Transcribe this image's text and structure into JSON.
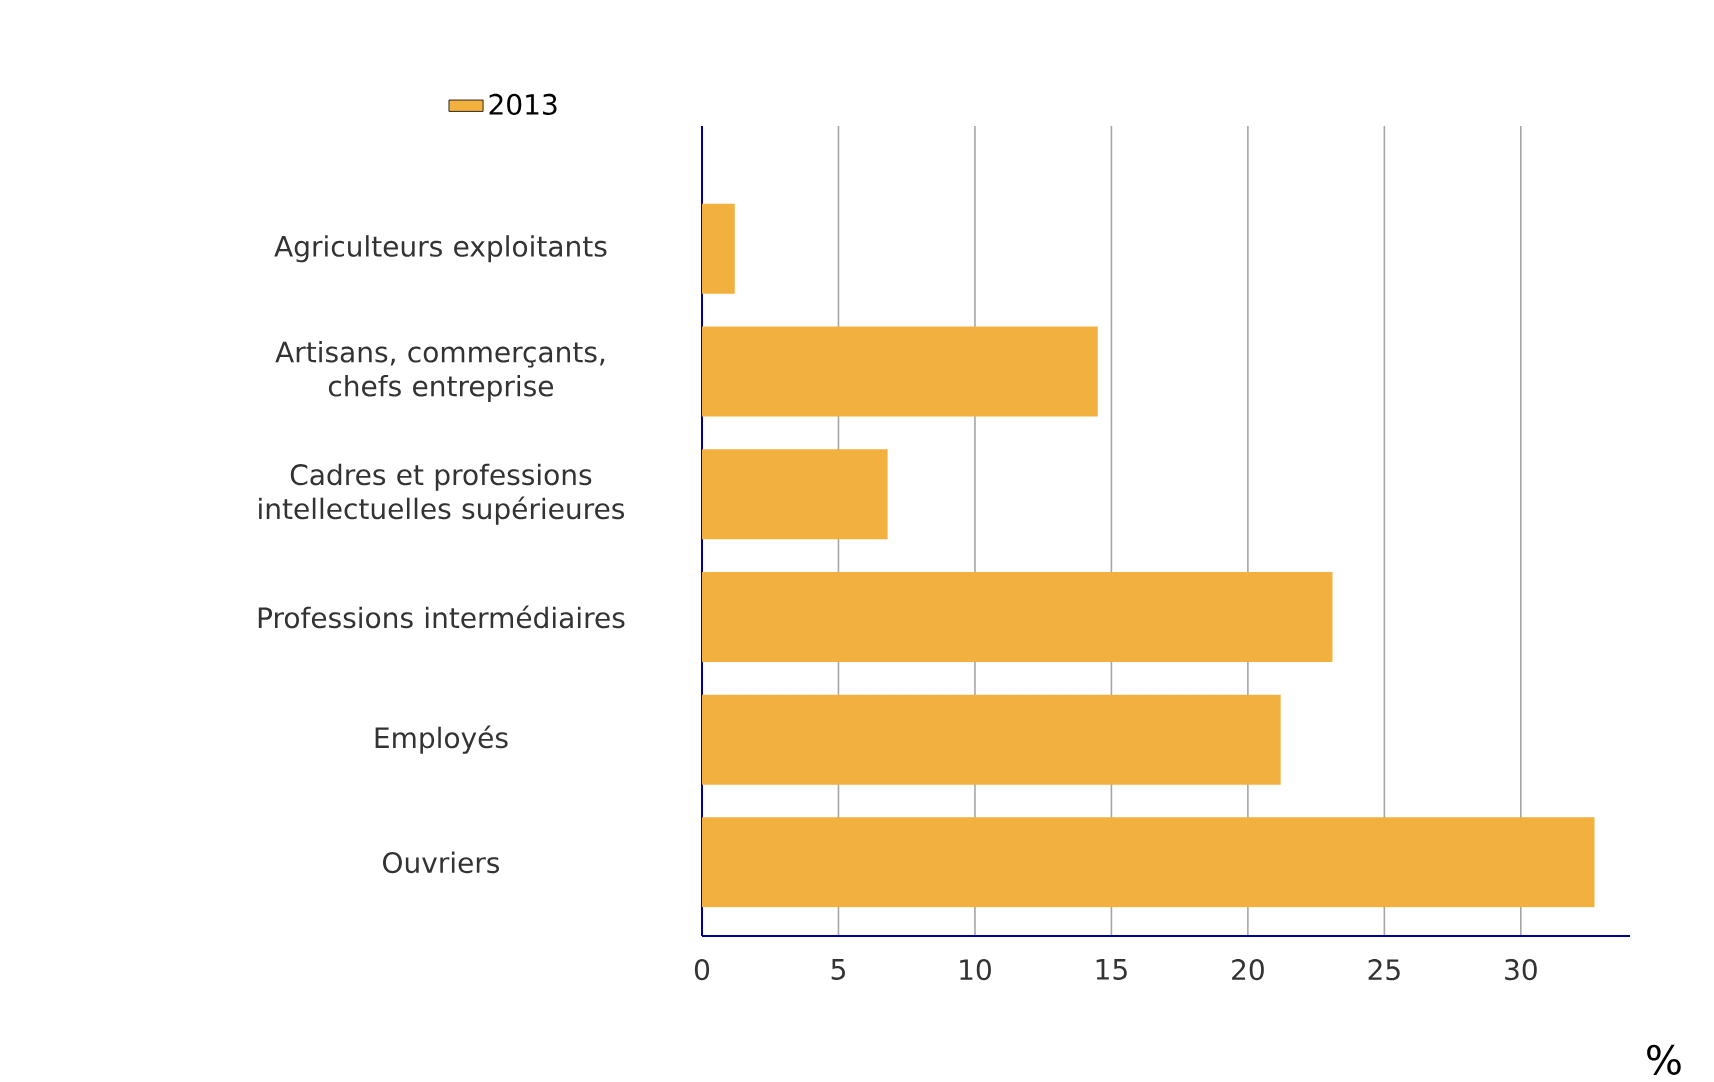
{
  "chart_data": {
    "type": "bar",
    "orientation": "horizontal",
    "categories": [
      "Agriculteurs exploitants",
      "Artisans, commerçants, chefs entreprise",
      "Cadres et professions intellectuelles supérieures",
      "Professions intermédiaires",
      "Employés",
      "Ouvriers"
    ],
    "series": [
      {
        "name": "2013",
        "color": "#f2b13f",
        "values": [
          1.2,
          14.5,
          6.8,
          23.1,
          21.2,
          32.7
        ]
      }
    ],
    "xlabel": "%",
    "xlim": [
      0,
      34
    ],
    "xticks": [
      0,
      5,
      10,
      15,
      20,
      25,
      30
    ],
    "grid": "x",
    "legend": "top left"
  }
}
